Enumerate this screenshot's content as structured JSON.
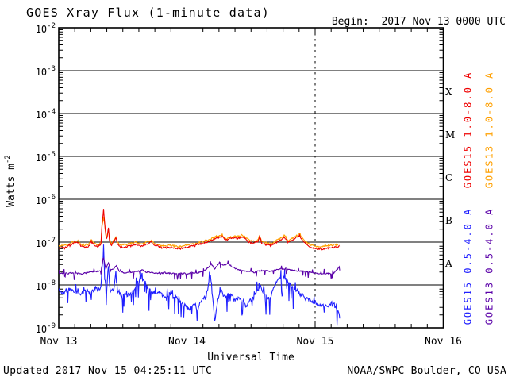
{
  "header": {
    "title": "GOES Xray Flux (1-minute data)",
    "begin": "Begin:  2017 Nov 13 0000 UTC"
  },
  "footer": {
    "updated": "Updated 2017 Nov 15 04:25:11 UTC",
    "source": "NOAA/SWPC Boulder, CO USA"
  },
  "chart_data": {
    "type": "line",
    "title": "GOES Xray Flux (1-minute data)",
    "xlabel": "Universal Time",
    "ylabel_base": "Watts m",
    "ylabel_exponent": "-2",
    "y_axis": {
      "scale": "log",
      "base": "10",
      "exponents": [
        -2,
        -3,
        -4,
        -5,
        -6,
        -7,
        -8,
        -9
      ],
      "decade_gridlines": true
    },
    "x_axis": {
      "range_hours": [
        0,
        72
      ],
      "minor_tick_hours": 3,
      "dashed_gridline_hours": [
        24,
        48
      ],
      "ticks": [
        {
          "label": "Nov 13",
          "hour": 0
        },
        {
          "label": "Nov 14",
          "hour": 24
        },
        {
          "label": "Nov 15",
          "hour": 48
        },
        {
          "label": "Nov 16",
          "hour": 72
        }
      ]
    },
    "flare_classes": [
      {
        "label": "X",
        "log_center": -3.5
      },
      {
        "label": "M",
        "log_center": -4.5
      },
      {
        "label": "C",
        "log_center": -5.5
      },
      {
        "label": "B",
        "log_center": -6.5
      },
      {
        "label": "A",
        "log_center": -7.5
      }
    ],
    "data_end_hour": 52.6,
    "units": "watts per square meter, values stored as log10",
    "series": [
      {
        "name": "GOES15 0.5-4.0 A",
        "satellite": "GOES15",
        "channel": "0.5-4.0 A",
        "color": "#2020FF",
        "noise": {
          "sigma": 0.1,
          "smooth": 0.3,
          "dip_p": 0.12,
          "dip_mag": 0.38,
          "up_p": 0.06,
          "up_mag": 0.18,
          "seed": 11
        },
        "clamp_min_log": -8.97,
        "anchors": [
          [
            0,
            -8.12
          ],
          [
            1,
            -8.18
          ],
          [
            2,
            -8.08
          ],
          [
            3,
            -8.15
          ],
          [
            4,
            -8.22
          ],
          [
            5,
            -8.12
          ],
          [
            6,
            -8.15
          ],
          [
            7,
            -8.1
          ],
          [
            7.9,
            -8.05
          ],
          [
            8.4,
            -7.05
          ],
          [
            8.6,
            -7.9
          ],
          [
            9.0,
            -8.1
          ],
          [
            9.3,
            -7.55
          ],
          [
            9.6,
            -8.1
          ],
          [
            10.3,
            -8.15
          ],
          [
            10.7,
            -7.62
          ],
          [
            11.0,
            -8.15
          ],
          [
            11.8,
            -8.2
          ],
          [
            12.8,
            -8.25
          ],
          [
            13.8,
            -8.15
          ],
          [
            14.6,
            -7.95
          ],
          [
            15.3,
            -7.83
          ],
          [
            16.0,
            -7.9
          ],
          [
            16.8,
            -8.1
          ],
          [
            17.8,
            -8.2
          ],
          [
            18.8,
            -8.15
          ],
          [
            19.8,
            -8.28
          ],
          [
            20.8,
            -8.2
          ],
          [
            21.8,
            -8.3
          ],
          [
            22.8,
            -8.4
          ],
          [
            23.6,
            -8.5
          ],
          [
            24.4,
            -8.55
          ],
          [
            25.2,
            -8.45
          ],
          [
            26.0,
            -8.55
          ],
          [
            26.8,
            -8.35
          ],
          [
            27.6,
            -8.25
          ],
          [
            28.4,
            -7.78
          ],
          [
            28.8,
            -8.3
          ],
          [
            29.2,
            -8.85
          ],
          [
            29.7,
            -8.4
          ],
          [
            30.4,
            -8.1
          ],
          [
            31.2,
            -8.3
          ],
          [
            32.0,
            -8.15
          ],
          [
            33.0,
            -8.4
          ],
          [
            34.0,
            -8.3
          ],
          [
            35.0,
            -8.5
          ],
          [
            36.0,
            -8.35
          ],
          [
            37.0,
            -8.2
          ],
          [
            37.7,
            -8.0
          ],
          [
            38.4,
            -8.2
          ],
          [
            39.2,
            -8.35
          ],
          [
            40.0,
            -8.15
          ],
          [
            40.7,
            -7.95
          ],
          [
            41.4,
            -7.8
          ],
          [
            42.2,
            -7.82
          ],
          [
            43.0,
            -7.95
          ],
          [
            44.0,
            -8.1
          ],
          [
            45.0,
            -8.2
          ],
          [
            46.0,
            -8.3
          ],
          [
            47.0,
            -8.35
          ],
          [
            48.0,
            -8.4
          ],
          [
            48.6,
            -8.5
          ],
          [
            49.2,
            -8.45
          ],
          [
            50.0,
            -8.5
          ],
          [
            50.8,
            -8.45
          ],
          [
            51.6,
            -8.5
          ],
          [
            52.3,
            -8.55
          ],
          [
            52.6,
            -8.8
          ]
        ]
      },
      {
        "name": "GOES13 0.5-4.0 A",
        "satellite": "GOES13",
        "channel": "0.5-4.0 A",
        "color": "#5A00A8",
        "noise": {
          "sigma": 0.03,
          "smooth": 0.3,
          "dip_p": 0.05,
          "dip_mag": 0.06,
          "up_p": 0.04,
          "up_mag": 0.06,
          "seed": 7
        },
        "clamp_min_log": -8.97,
        "anchors": [
          [
            0,
            -7.72
          ],
          [
            2,
            -7.73
          ],
          [
            4,
            -7.74
          ],
          [
            6,
            -7.7
          ],
          [
            7.9,
            -7.68
          ],
          [
            8.4,
            -7.36
          ],
          [
            8.8,
            -7.62
          ],
          [
            9.3,
            -7.48
          ],
          [
            9.7,
            -7.65
          ],
          [
            10.5,
            -7.6
          ],
          [
            10.8,
            -7.55
          ],
          [
            11.3,
            -7.68
          ],
          [
            12.5,
            -7.72
          ],
          [
            14,
            -7.7
          ],
          [
            15.5,
            -7.66
          ],
          [
            16.5,
            -7.7
          ],
          [
            18,
            -7.73
          ],
          [
            20,
            -7.72
          ],
          [
            22,
            -7.74
          ],
          [
            24,
            -7.73
          ],
          [
            26,
            -7.72
          ],
          [
            27.5,
            -7.66
          ],
          [
            28.6,
            -7.52
          ],
          [
            29.2,
            -7.62
          ],
          [
            30.2,
            -7.47
          ],
          [
            30.8,
            -7.55
          ],
          [
            31.6,
            -7.5
          ],
          [
            32.4,
            -7.58
          ],
          [
            33.5,
            -7.64
          ],
          [
            35,
            -7.68
          ],
          [
            36.5,
            -7.7
          ],
          [
            38,
            -7.66
          ],
          [
            39.5,
            -7.68
          ],
          [
            41,
            -7.64
          ],
          [
            42.5,
            -7.62
          ],
          [
            44,
            -7.66
          ],
          [
            45.5,
            -7.68
          ],
          [
            47,
            -7.71
          ],
          [
            48.5,
            -7.73
          ],
          [
            50,
            -7.74
          ],
          [
            51.5,
            -7.72
          ],
          [
            52.2,
            -7.62
          ],
          [
            52.6,
            -7.55
          ]
        ]
      },
      {
        "name": "GOES13 1.0-8.0 A",
        "satellite": "GOES13",
        "channel": "1.0-8.0 A",
        "color": "#FFA000",
        "noise": {
          "sigma": 0.038,
          "smooth": 0.25,
          "dip_p": 0,
          "dip_mag": 0,
          "up_p": 0,
          "up_mag": 0,
          "seed": 5
        },
        "clamp_min_log": -8.97,
        "anchors": [
          [
            0,
            -7.09
          ],
          [
            1.5,
            -7.07
          ],
          [
            3.0,
            -6.98
          ],
          [
            3.6,
            -6.96
          ],
          [
            4.2,
            -7.05
          ],
          [
            5.5,
            -7.07
          ],
          [
            6.1,
            -6.93
          ],
          [
            6.4,
            -7.0
          ],
          [
            7.3,
            -7.07
          ],
          [
            7.9,
            -7.0
          ],
          [
            8.1,
            -6.65
          ],
          [
            8.4,
            -6.42
          ],
          [
            8.6,
            -6.6
          ],
          [
            8.9,
            -6.92
          ],
          [
            9.1,
            -6.82
          ],
          [
            9.3,
            -6.7
          ],
          [
            9.5,
            -6.92
          ],
          [
            9.9,
            -7.03
          ],
          [
            10.5,
            -6.92
          ],
          [
            10.7,
            -6.87
          ],
          [
            11.0,
            -7.0
          ],
          [
            11.6,
            -7.07
          ],
          [
            13,
            -7.05
          ],
          [
            14.5,
            -7.0
          ],
          [
            15.5,
            -7.05
          ],
          [
            16.5,
            -7.0
          ],
          [
            17.3,
            -6.96
          ],
          [
            18,
            -7.03
          ],
          [
            19.5,
            -7.09
          ],
          [
            21,
            -7.07
          ],
          [
            22.5,
            -7.11
          ],
          [
            24,
            -7.07
          ],
          [
            25.5,
            -7.03
          ],
          [
            27,
            -6.98
          ],
          [
            28.3,
            -6.93
          ],
          [
            29.3,
            -6.88
          ],
          [
            30.6,
            -6.83
          ],
          [
            31.3,
            -6.92
          ],
          [
            32.2,
            -6.88
          ],
          [
            33.5,
            -6.86
          ],
          [
            34.6,
            -6.84
          ],
          [
            35.3,
            -6.93
          ],
          [
            36.2,
            -6.98
          ],
          [
            37.3,
            -6.96
          ],
          [
            37.6,
            -6.85
          ],
          [
            38.0,
            -6.98
          ],
          [
            38.8,
            -7.02
          ],
          [
            39.8,
            -7.04
          ],
          [
            40.8,
            -6.96
          ],
          [
            41.6,
            -6.91
          ],
          [
            42.3,
            -6.84
          ],
          [
            42.9,
            -6.96
          ],
          [
            43.8,
            -6.91
          ],
          [
            44.4,
            -6.86
          ],
          [
            45.1,
            -6.81
          ],
          [
            45.6,
            -6.91
          ],
          [
            46.3,
            -7.0
          ],
          [
            47.2,
            -7.07
          ],
          [
            48.5,
            -7.11
          ],
          [
            49.8,
            -7.09
          ],
          [
            51,
            -7.07
          ],
          [
            52.0,
            -7.06
          ],
          [
            52.6,
            -7.04
          ]
        ]
      },
      {
        "name": "GOES15 1.0-8.0 A",
        "satellite": "GOES15",
        "channel": "1.0-8.0 A",
        "color": "#EE0000",
        "noise": {
          "sigma": 0.038,
          "smooth": 0.25,
          "dip_p": 0,
          "dip_mag": 0,
          "up_p": 0,
          "up_mag": 0,
          "seed": 3
        },
        "clamp_min_log": -8.97,
        "anchors": [
          [
            0,
            -7.14
          ],
          [
            1.5,
            -7.12
          ],
          [
            3.0,
            -7.02
          ],
          [
            3.6,
            -7.0
          ],
          [
            4.2,
            -7.1
          ],
          [
            5.5,
            -7.12
          ],
          [
            6.1,
            -6.97
          ],
          [
            6.4,
            -7.05
          ],
          [
            7.3,
            -7.12
          ],
          [
            7.9,
            -7.05
          ],
          [
            8.1,
            -6.6
          ],
          [
            8.4,
            -6.24
          ],
          [
            8.6,
            -6.55
          ],
          [
            8.9,
            -6.95
          ],
          [
            9.1,
            -6.85
          ],
          [
            9.3,
            -6.67
          ],
          [
            9.5,
            -6.95
          ],
          [
            9.9,
            -7.08
          ],
          [
            10.5,
            -6.95
          ],
          [
            10.7,
            -6.89
          ],
          [
            11.0,
            -7.05
          ],
          [
            11.6,
            -7.12
          ],
          [
            13,
            -7.1
          ],
          [
            14.5,
            -7.05
          ],
          [
            15.5,
            -7.1
          ],
          [
            16.5,
            -7.05
          ],
          [
            17.3,
            -7.0
          ],
          [
            18,
            -7.08
          ],
          [
            19.5,
            -7.14
          ],
          [
            21,
            -7.12
          ],
          [
            22.5,
            -7.16
          ],
          [
            24,
            -7.12
          ],
          [
            25.5,
            -7.08
          ],
          [
            27,
            -7.02
          ],
          [
            28.3,
            -6.97
          ],
          [
            29.3,
            -6.92
          ],
          [
            30.6,
            -6.87
          ],
          [
            31.3,
            -6.96
          ],
          [
            32.2,
            -6.92
          ],
          [
            33.5,
            -6.9
          ],
          [
            34.6,
            -6.88
          ],
          [
            35.3,
            -6.97
          ],
          [
            36.2,
            -7.02
          ],
          [
            37.3,
            -7.0
          ],
          [
            37.6,
            -6.88
          ],
          [
            38.0,
            -7.02
          ],
          [
            38.8,
            -7.06
          ],
          [
            39.8,
            -7.08
          ],
          [
            40.8,
            -7.0
          ],
          [
            41.6,
            -6.95
          ],
          [
            42.3,
            -6.88
          ],
          [
            42.9,
            -7.0
          ],
          [
            43.8,
            -6.95
          ],
          [
            44.4,
            -6.9
          ],
          [
            45.1,
            -6.85
          ],
          [
            45.6,
            -6.95
          ],
          [
            46.3,
            -7.05
          ],
          [
            47.2,
            -7.12
          ],
          [
            48.5,
            -7.16
          ],
          [
            49.8,
            -7.15
          ],
          [
            51,
            -7.13
          ],
          [
            52.0,
            -7.12
          ],
          [
            52.6,
            -7.1
          ]
        ]
      }
    ]
  }
}
